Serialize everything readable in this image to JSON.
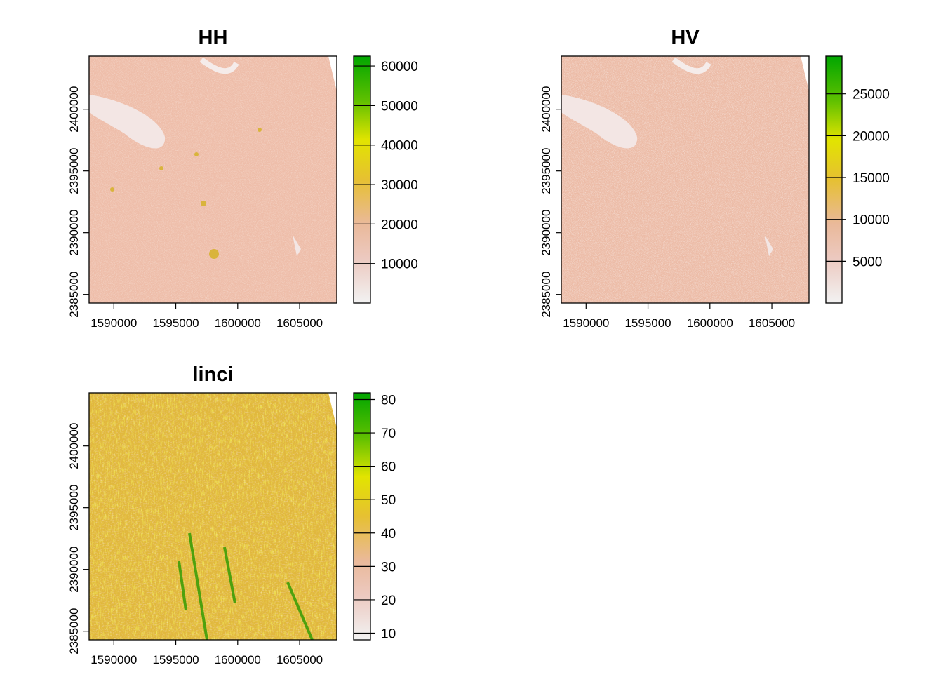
{
  "chart_data": [
    {
      "type": "heatmap",
      "title": "HH",
      "x_ticks": [
        1590000,
        1595000,
        1600000,
        1605000
      ],
      "y_ticks": [
        2385000,
        2390000,
        2395000,
        2400000
      ],
      "xlim": [
        1588000,
        1608000
      ],
      "ylim": [
        2384300,
        2404300
      ],
      "legend": {
        "placement": "right",
        "range": [
          0,
          62500
        ],
        "ticks": [
          10000,
          20000,
          30000,
          40000,
          50000,
          60000
        ],
        "tick_labels": [
          "10000",
          "20000",
          "30000",
          "40000",
          "50000",
          "60000"
        ]
      },
      "palette": [
        "#f2f2f2",
        "#eab99a",
        "#e6c032",
        "#e2e400",
        "#5fc000",
        "#00a600"
      ],
      "dominant_color": "#eebda9",
      "features": [
        "lake (upper left)",
        "urban texture",
        "rivers"
      ]
    },
    {
      "type": "heatmap",
      "title": "HV",
      "x_ticks": [
        1590000,
        1595000,
        1600000,
        1605000
      ],
      "y_ticks": [
        2385000,
        2390000,
        2395000,
        2400000
      ],
      "xlim": [
        1588000,
        1608000
      ],
      "ylim": [
        2384300,
        2404300
      ],
      "legend": {
        "placement": "right",
        "range": [
          0,
          29500
        ],
        "ticks": [
          5000,
          10000,
          15000,
          20000,
          25000
        ],
        "tick_labels": [
          "5000",
          "10000",
          "15000",
          "20000",
          "25000"
        ]
      },
      "palette": [
        "#f2f2f2",
        "#eab99a",
        "#e6c032",
        "#e2e400",
        "#5fc000",
        "#00a600"
      ],
      "dominant_color": "#ecbba6",
      "features": [
        "lake (upper left)",
        "urban texture"
      ]
    },
    {
      "type": "heatmap",
      "title": "linci",
      "x_ticks": [
        1590000,
        1595000,
        1600000,
        1605000
      ],
      "y_ticks": [
        2385000,
        2390000,
        2395000,
        2400000
      ],
      "xlim": [
        1588000,
        1608000
      ],
      "ylim": [
        2384300,
        2404300
      ],
      "legend": {
        "placement": "right",
        "range": [
          8,
          82
        ],
        "ticks": [
          10,
          20,
          30,
          40,
          50,
          60,
          70,
          80
        ],
        "tick_labels": [
          "10",
          "20",
          "30",
          "40",
          "50",
          "60",
          "70",
          "80"
        ]
      },
      "palette": [
        "#f2f2f2",
        "#eab99a",
        "#e6c032",
        "#e2e400",
        "#5fc000",
        "#00a600"
      ],
      "dominant_color": "#e1b83d",
      "features": [
        "terrain ridges (lower)"
      ]
    }
  ]
}
